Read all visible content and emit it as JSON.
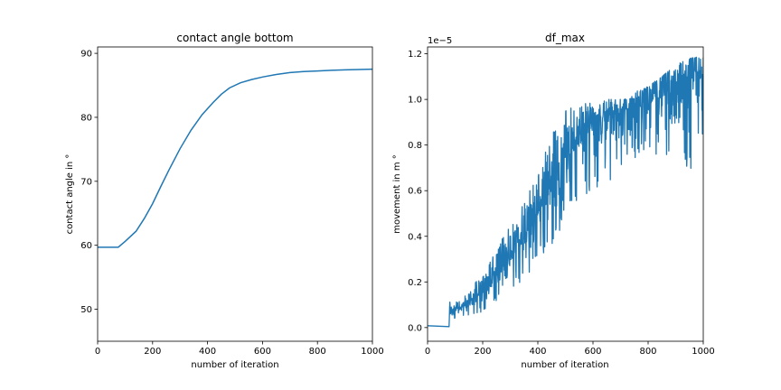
{
  "chart_data": [
    {
      "type": "line",
      "title": "contact angle bottom",
      "xlabel": "number of iteration",
      "ylabel": "contact angle in °",
      "xlim": [
        0,
        1000
      ],
      "ylim": [
        45,
        91
      ],
      "xticks": [
        0,
        200,
        400,
        600,
        800,
        1000
      ],
      "yticks": [
        50,
        60,
        70,
        80,
        90
      ],
      "grid": false,
      "color": "#1f77b4",
      "series": [
        {
          "x": [
            0,
            40,
            75,
            100,
            140,
            170,
            200,
            230,
            260,
            300,
            340,
            380,
            420,
            450,
            480,
            520,
            560,
            600,
            650,
            700,
            750,
            800,
            850,
            900,
            950,
            1000
          ],
          "y": [
            59.7,
            59.7,
            59.7,
            60.6,
            62.2,
            64.2,
            66.5,
            69.2,
            71.8,
            75.1,
            78.0,
            80.4,
            82.3,
            83.6,
            84.6,
            85.4,
            85.9,
            86.3,
            86.7,
            87.0,
            87.15,
            87.25,
            87.35,
            87.42,
            87.48,
            87.52
          ]
        }
      ]
    },
    {
      "type": "line",
      "title": "df_max",
      "xlabel": "number of iteration",
      "ylabel": "movement in m °",
      "y_offset_label": "1e−5",
      "xlim": [
        0,
        1000
      ],
      "ylim": [
        -0.06,
        1.23
      ],
      "xticks": [
        0,
        200,
        400,
        600,
        800,
        1000
      ],
      "yticks": [
        "0.0",
        "0.2",
        "0.4",
        "0.6",
        "0.8",
        "1.0",
        "1.2"
      ],
      "grid": false,
      "color": "#1f77b4",
      "series": [
        {
          "x": [
            0,
            10,
            40,
            70,
            78,
            80,
            85,
            100,
            150,
            200,
            250,
            300,
            350,
            400,
            450,
            500,
            550,
            600,
            650,
            700,
            750,
            800,
            850,
            900,
            950,
            1000
          ],
          "y_mean": [
            0.008,
            0.007,
            0.006,
            0.004,
            0.004,
            0.08,
            0.06,
            0.07,
            0.1,
            0.15,
            0.21,
            0.29,
            0.38,
            0.48,
            0.58,
            0.7,
            0.8,
            0.86,
            0.9,
            0.92,
            0.95,
            0.98,
            1.0,
            1.03,
            1.06,
            1.08
          ],
          "y_min": [
            0.008,
            0.007,
            0.006,
            0.004,
            0.004,
            0.04,
            0.03,
            0.04,
            0.05,
            0.07,
            0.11,
            0.16,
            0.21,
            0.29,
            0.36,
            0.47,
            0.55,
            0.6,
            0.62,
            0.7,
            0.74,
            0.78,
            0.62,
            0.76,
            0.65,
            0.86
          ],
          "y_max": [
            0.008,
            0.007,
            0.006,
            0.004,
            0.004,
            0.12,
            0.1,
            0.11,
            0.15,
            0.25,
            0.34,
            0.46,
            0.55,
            0.67,
            0.86,
            0.95,
            0.98,
            0.99,
            1.0,
            1.0,
            1.03,
            1.06,
            1.1,
            1.15,
            1.18,
            1.19
          ]
        }
      ]
    }
  ]
}
